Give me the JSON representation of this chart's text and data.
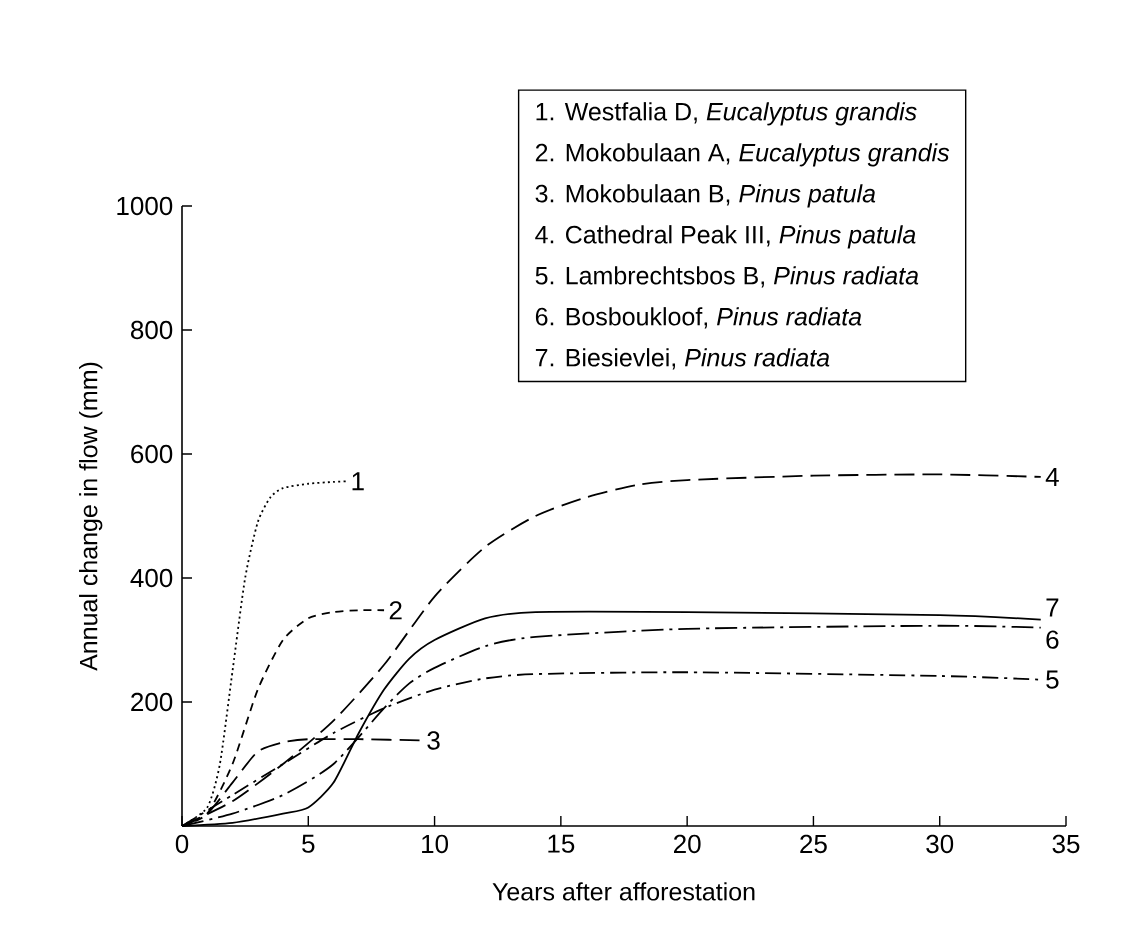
{
  "chart_data": {
    "type": "line",
    "xlabel": "Years after afforestation",
    "ylabel": "Annual change in flow (mm)",
    "xlim": [
      0,
      35
    ],
    "ylim": [
      0,
      1000
    ],
    "xticks": [
      0,
      5,
      10,
      15,
      20,
      25,
      30,
      35
    ],
    "yticks": [
      200,
      400,
      600,
      800,
      1000
    ],
    "grid": false,
    "legend": false,
    "marker": "none",
    "annotations": [
      "1. Westfalia D, *Eucalyptus grandis*",
      "2. Mokobulaan A, *Eucalyptus grandis*",
      "3. Mokobulaan B, *Pinus patula*",
      "4. Cathedral Peak III, *Pinus patula*",
      "5. Lambrechtsbos B, *Pinus radiata*",
      "6. Bosboukloof, *Pinus radiata*",
      "7. Biesievlei, *Pinus radiata*"
    ],
    "series": [
      {
        "name": "1",
        "color": "#000000",
        "line_style": "dotted",
        "x": [
          0,
          1,
          1.5,
          2,
          2.5,
          3,
          3.5,
          4,
          5,
          6,
          6.5
        ],
        "values": [
          0,
          30,
          100,
          250,
          400,
          490,
          530,
          545,
          552,
          555,
          556
        ]
      },
      {
        "name": "2",
        "color": "#000000",
        "line_style": "dashed",
        "x": [
          0,
          1,
          2,
          3,
          4,
          5,
          6,
          7,
          8
        ],
        "values": [
          0,
          20,
          100,
          220,
          300,
          335,
          345,
          348,
          348
        ]
      },
      {
        "name": "3",
        "color": "#000000",
        "line_style": "longdashed",
        "x": [
          0,
          1,
          2,
          3,
          4,
          5,
          7,
          9.5
        ],
        "values": [
          0,
          20,
          70,
          120,
          135,
          140,
          140,
          138
        ]
      },
      {
        "name": "4",
        "color": "#000000",
        "line_style": "longdashed",
        "x": [
          0,
          2,
          4,
          6,
          8,
          10,
          12,
          14,
          16,
          18,
          20,
          25,
          30,
          34
        ],
        "values": [
          0,
          40,
          100,
          170,
          260,
          370,
          450,
          500,
          530,
          550,
          558,
          565,
          567,
          563
        ]
      },
      {
        "name": "5",
        "color": "#000000",
        "line_style": "dashdot",
        "x": [
          0,
          2,
          4,
          6,
          8,
          10,
          12,
          14,
          20,
          30,
          34
        ],
        "values": [
          0,
          50,
          100,
          150,
          190,
          220,
          238,
          245,
          248,
          242,
          236
        ]
      },
      {
        "name": "6",
        "color": "#000000",
        "line_style": "longdashdot",
        "x": [
          0,
          2,
          4,
          6,
          8,
          9,
          10,
          12,
          14,
          20,
          30,
          34
        ],
        "values": [
          0,
          20,
          50,
          100,
          190,
          230,
          255,
          290,
          305,
          318,
          323,
          320
        ]
      },
      {
        "name": "7",
        "color": "#000000",
        "line_style": "solid",
        "x": [
          0,
          2,
          4,
          5,
          6,
          7,
          8,
          9,
          10,
          12,
          14,
          20,
          30,
          34
        ],
        "values": [
          0,
          5,
          20,
          30,
          70,
          150,
          220,
          270,
          300,
          335,
          345,
          345,
          340,
          333
        ]
      }
    ]
  }
}
